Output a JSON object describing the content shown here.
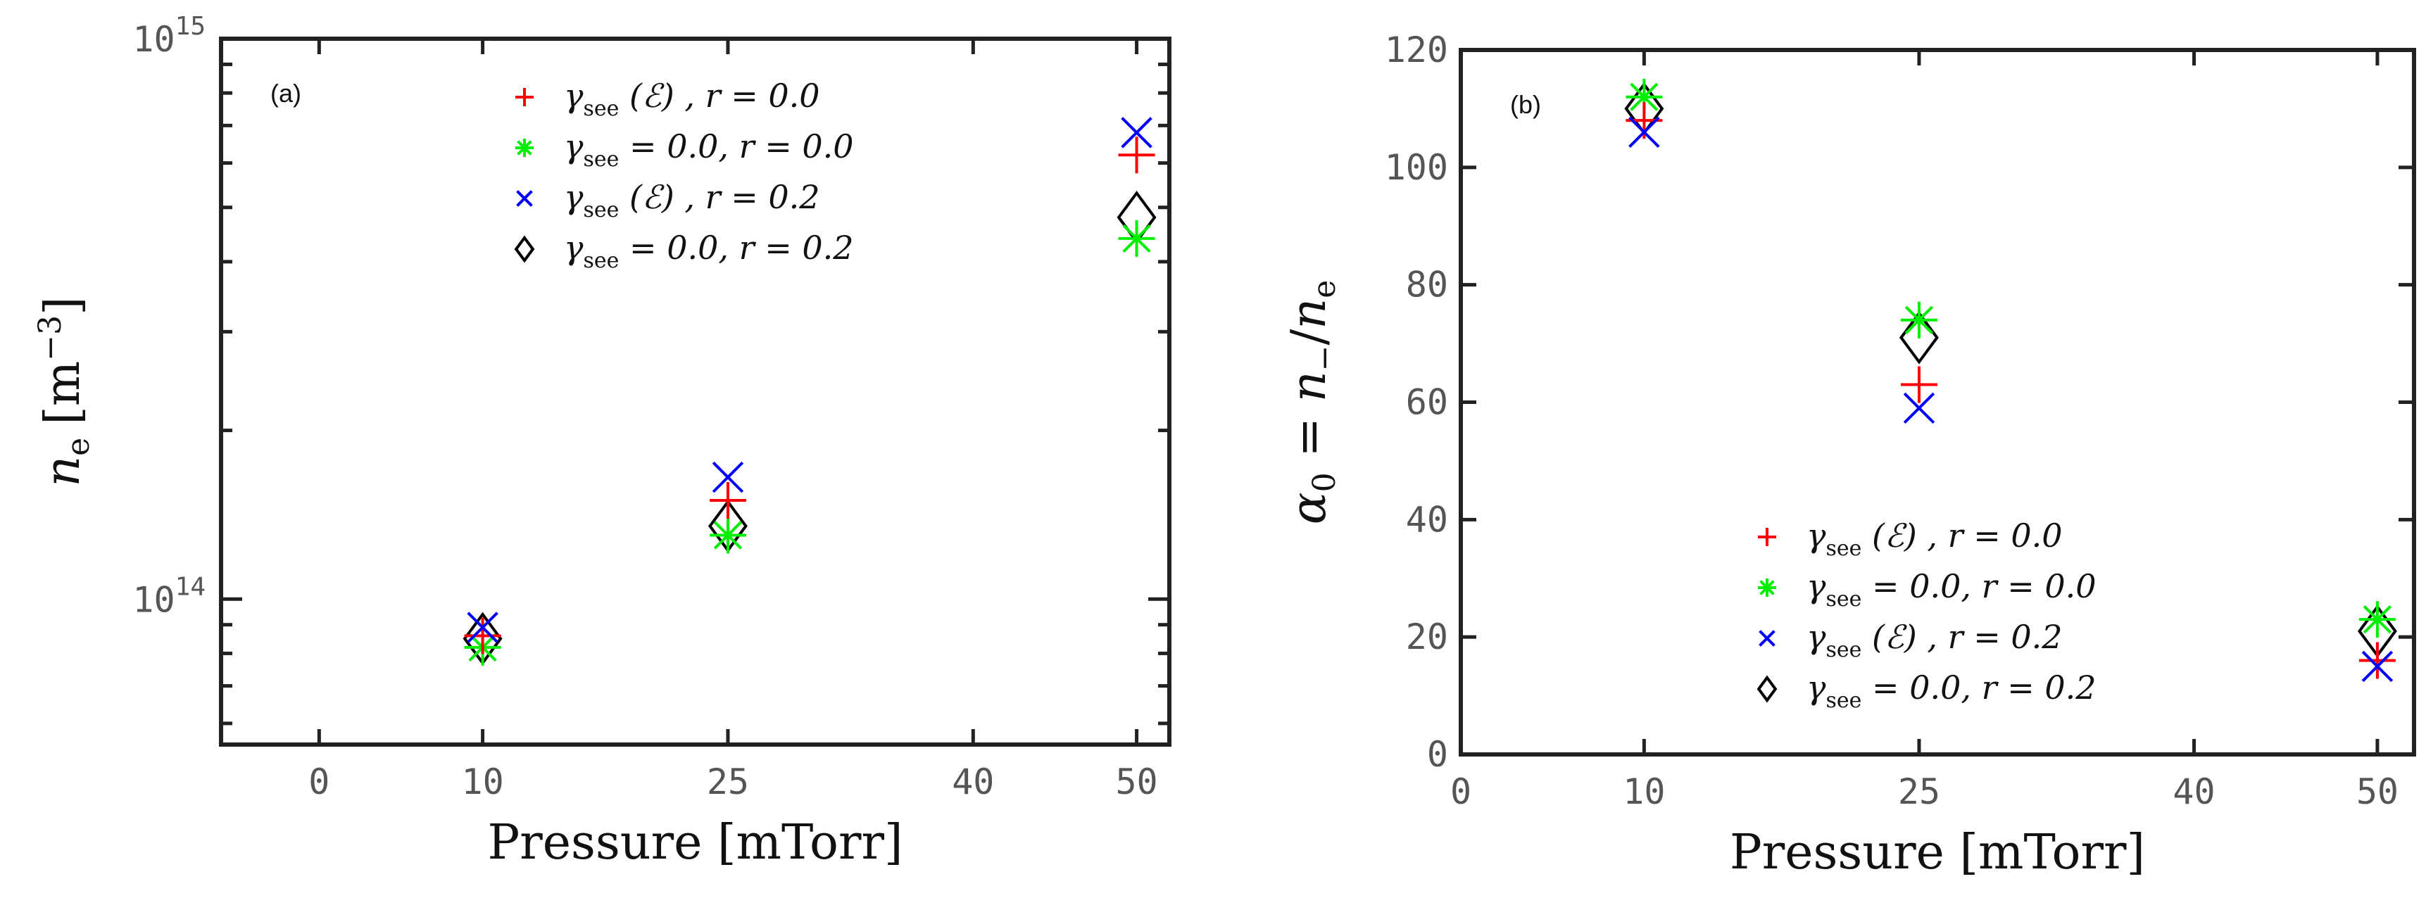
{
  "chart_data": [
    {
      "type": "scatter",
      "panel_label": "(a)",
      "xlabel": "Pressure [mTorr]",
      "ylabel": "n_e [m^-3]",
      "ylabel_main": "n",
      "ylabel_sub": "e",
      "ylabel_unit": "[m",
      "ylabel_unit_exp": "−3",
      "ylabel_unit_close": "]",
      "yscale": "log",
      "xlim": [
        -6,
        52
      ],
      "ylim": [
        55000000000000.0,
        1000000000000000.0
      ],
      "xticks": [
        0,
        10,
        25,
        40,
        50
      ],
      "xtick_labels": [
        "0",
        "10",
        "25",
        "40",
        "50"
      ],
      "yticks": [
        100000000000000.0,
        1000000000000000.0
      ],
      "ytick_labels": [
        {
          "base": "10",
          "exp": "14"
        },
        {
          "base": "10",
          "exp": "15"
        }
      ],
      "legend_position": "top-center",
      "x": [
        10,
        25,
        50
      ],
      "series": [
        {
          "name": "γsee(ℰ), r = 0.0",
          "marker": "plus",
          "color": "#ff0000",
          "values": [
            86000000000000.0,
            150000000000000.0,
            620000000000000.0
          ]
        },
        {
          "name": "γsee = 0.0, r = 0.0",
          "marker": "star",
          "color": "#00ee00",
          "values": [
            82000000000000.0,
            130000000000000.0,
            440000000000000.0
          ]
        },
        {
          "name": "γsee(ℰ), r = 0.2",
          "marker": "x",
          "color": "#0000ff",
          "values": [
            89000000000000.0,
            165000000000000.0,
            680000000000000.0
          ]
        },
        {
          "name": "γsee = 0.0, r = 0.2",
          "marker": "diamond",
          "color": "#000000",
          "values": [
            85000000000000.0,
            135000000000000.0,
            480000000000000.0
          ]
        }
      ]
    },
    {
      "type": "scatter",
      "panel_label": "(b)",
      "xlabel": "Pressure [mTorr]",
      "ylabel": "α0 = n−/ne",
      "yscale": "linear",
      "xlim": [
        0,
        52
      ],
      "ylim": [
        0,
        120
      ],
      "xticks": [
        0,
        10,
        25,
        40,
        50
      ],
      "xtick_labels": [
        "0",
        "10",
        "25",
        "40",
        "50"
      ],
      "yticks": [
        0,
        20,
        40,
        60,
        80,
        100,
        120
      ],
      "ytick_labels": [
        "0",
        "20",
        "40",
        "60",
        "80",
        "100",
        "120"
      ],
      "legend_position": "bottom-center",
      "x": [
        10,
        25,
        50
      ],
      "series": [
        {
          "name": "γsee(ℰ), r = 0.0",
          "marker": "plus",
          "color": "#ff0000",
          "values": [
            108,
            63,
            16
          ]
        },
        {
          "name": "γsee = 0.0, r = 0.0",
          "marker": "star",
          "color": "#00ee00",
          "values": [
            112,
            74,
            23
          ]
        },
        {
          "name": "γsee(ℰ), r = 0.2",
          "marker": "x",
          "color": "#0000ff",
          "values": [
            106,
            59,
            15
          ]
        },
        {
          "name": "γsee = 0.0, r = 0.2",
          "marker": "diamond",
          "color": "#000000",
          "values": [
            110,
            71,
            21
          ]
        }
      ]
    }
  ]
}
